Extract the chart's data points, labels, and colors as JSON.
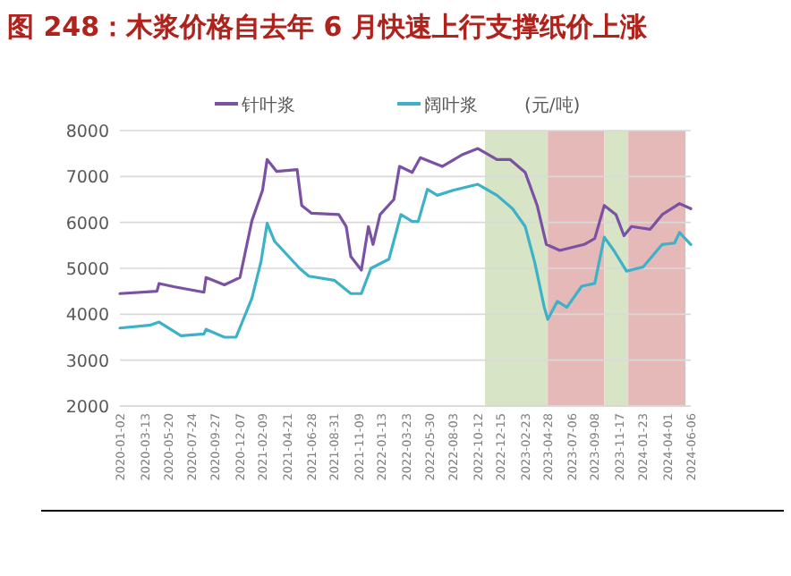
{
  "chart_data": {
    "type": "line",
    "title": "图 248：木浆价格自去年 6 月快速上行支撑纸价上涨",
    "ylabel": "(元/吨)",
    "legend": "top",
    "grid": "y",
    "xlim": [
      "2020-01-02",
      "2024-06-06"
    ],
    "xticks": [
      "2020-01-02",
      "2020-03-13",
      "2020-05-20",
      "2020-07-24",
      "2020-09-27",
      "2020-12-07",
      "2021-02-09",
      "2021-04-21",
      "2021-06-28",
      "2021-08-31",
      "2021-11-09",
      "2022-01-13",
      "2022-03-23",
      "2022-05-30",
      "2022-08-03",
      "2022-10-12",
      "2022-12-15",
      "2023-02-23",
      "2023-04-28",
      "2023-07-06",
      "2023-09-08",
      "2023-11-17",
      "2024-01-23",
      "2024-04-01",
      "2024-06-06"
    ],
    "ylim": [
      2000,
      8000
    ],
    "yticks": [
      2000,
      3000,
      4000,
      5000,
      6000,
      7000,
      8000
    ],
    "bands": [
      {
        "axis": "x",
        "from": "2022-11-01",
        "to": "2023-04-28",
        "color": "#d7e4c6"
      },
      {
        "axis": "x",
        "from": "2023-04-28",
        "to": "2023-10-05",
        "color": "#e6b9b9"
      },
      {
        "axis": "x",
        "from": "2023-10-05",
        "to": "2023-12-12",
        "color": "#d7e4c6"
      },
      {
        "axis": "x",
        "from": "2023-12-12",
        "to": "2024-05-22",
        "color": "#e6b9b9"
      }
    ],
    "series": [
      {
        "name": "针叶浆",
        "color": "#7b52a3",
        "x": [
          "2020-01-02",
          "2020-04-16",
          "2020-04-22",
          "2020-06-02",
          "2020-08-27",
          "2020-09-02",
          "2020-10-24",
          "2020-12-07",
          "2021-01-10",
          "2021-02-09",
          "2021-02-22",
          "2021-03-21",
          "2021-05-18",
          "2021-05-31",
          "2021-06-28",
          "2021-09-13",
          "2021-10-04",
          "2021-10-17",
          "2021-11-16",
          "2021-12-06",
          "2021-12-19",
          "2022-01-08",
          "2022-02-16",
          "2022-03-04",
          "2022-04-09",
          "2022-05-02",
          "2022-07-03",
          "2022-08-30",
          "2022-10-12",
          "2022-12-05",
          "2023-01-11",
          "2023-02-23",
          "2023-03-29",
          "2023-04-24",
          "2023-06-01",
          "2023-08-09",
          "2023-09-08",
          "2023-10-05",
          "2023-11-07",
          "2023-11-30",
          "2023-12-21",
          "2024-02-12",
          "2024-03-17",
          "2024-05-05",
          "2024-06-06"
        ],
        "values": [
          4450,
          4500,
          4670,
          4600,
          4480,
          4800,
          4640,
          4800,
          6040,
          6700,
          7370,
          7110,
          7150,
          6370,
          6200,
          6170,
          5910,
          5260,
          4960,
          5910,
          5520,
          6170,
          6500,
          7220,
          7090,
          7410,
          7220,
          7480,
          7610,
          7370,
          7370,
          7090,
          6370,
          5520,
          5390,
          5520,
          5650,
          6370,
          6170,
          5710,
          5910,
          5850,
          6170,
          6410,
          6300
        ]
      },
      {
        "name": "阔叶浆",
        "color": "#3cb1c8",
        "x": [
          "2020-01-02",
          "2020-03-26",
          "2020-04-22",
          "2020-06-23",
          "2020-08-27",
          "2020-09-02",
          "2020-10-24",
          "2020-11-26",
          "2021-01-10",
          "2021-02-05",
          "2021-02-22",
          "2021-03-15",
          "2021-05-25",
          "2021-06-20",
          "2021-08-31",
          "2021-10-17",
          "2021-11-16",
          "2021-12-13",
          "2022-02-02",
          "2022-03-08",
          "2022-04-09",
          "2022-04-26",
          "2022-05-22",
          "2022-06-19",
          "2022-08-03",
          "2022-10-12",
          "2022-12-05",
          "2023-01-18",
          "2023-02-23",
          "2023-03-22",
          "2023-04-18",
          "2023-04-28",
          "2023-05-25",
          "2023-06-21",
          "2023-08-02",
          "2023-09-08",
          "2023-10-05",
          "2023-11-01",
          "2023-12-07",
          "2024-01-23",
          "2024-03-17",
          "2024-04-21",
          "2024-05-05",
          "2024-06-06"
        ],
        "values": [
          3700,
          3760,
          3830,
          3530,
          3570,
          3670,
          3500,
          3500,
          4350,
          5160,
          5980,
          5590,
          5000,
          4830,
          4740,
          4450,
          4450,
          5000,
          5200,
          6170,
          6020,
          6020,
          6720,
          6590,
          6700,
          6830,
          6590,
          6300,
          5910,
          5130,
          4150,
          3890,
          4280,
          4150,
          4610,
          4670,
          5680,
          5390,
          4940,
          5030,
          5520,
          5550,
          5780,
          5520
        ]
      }
    ]
  }
}
